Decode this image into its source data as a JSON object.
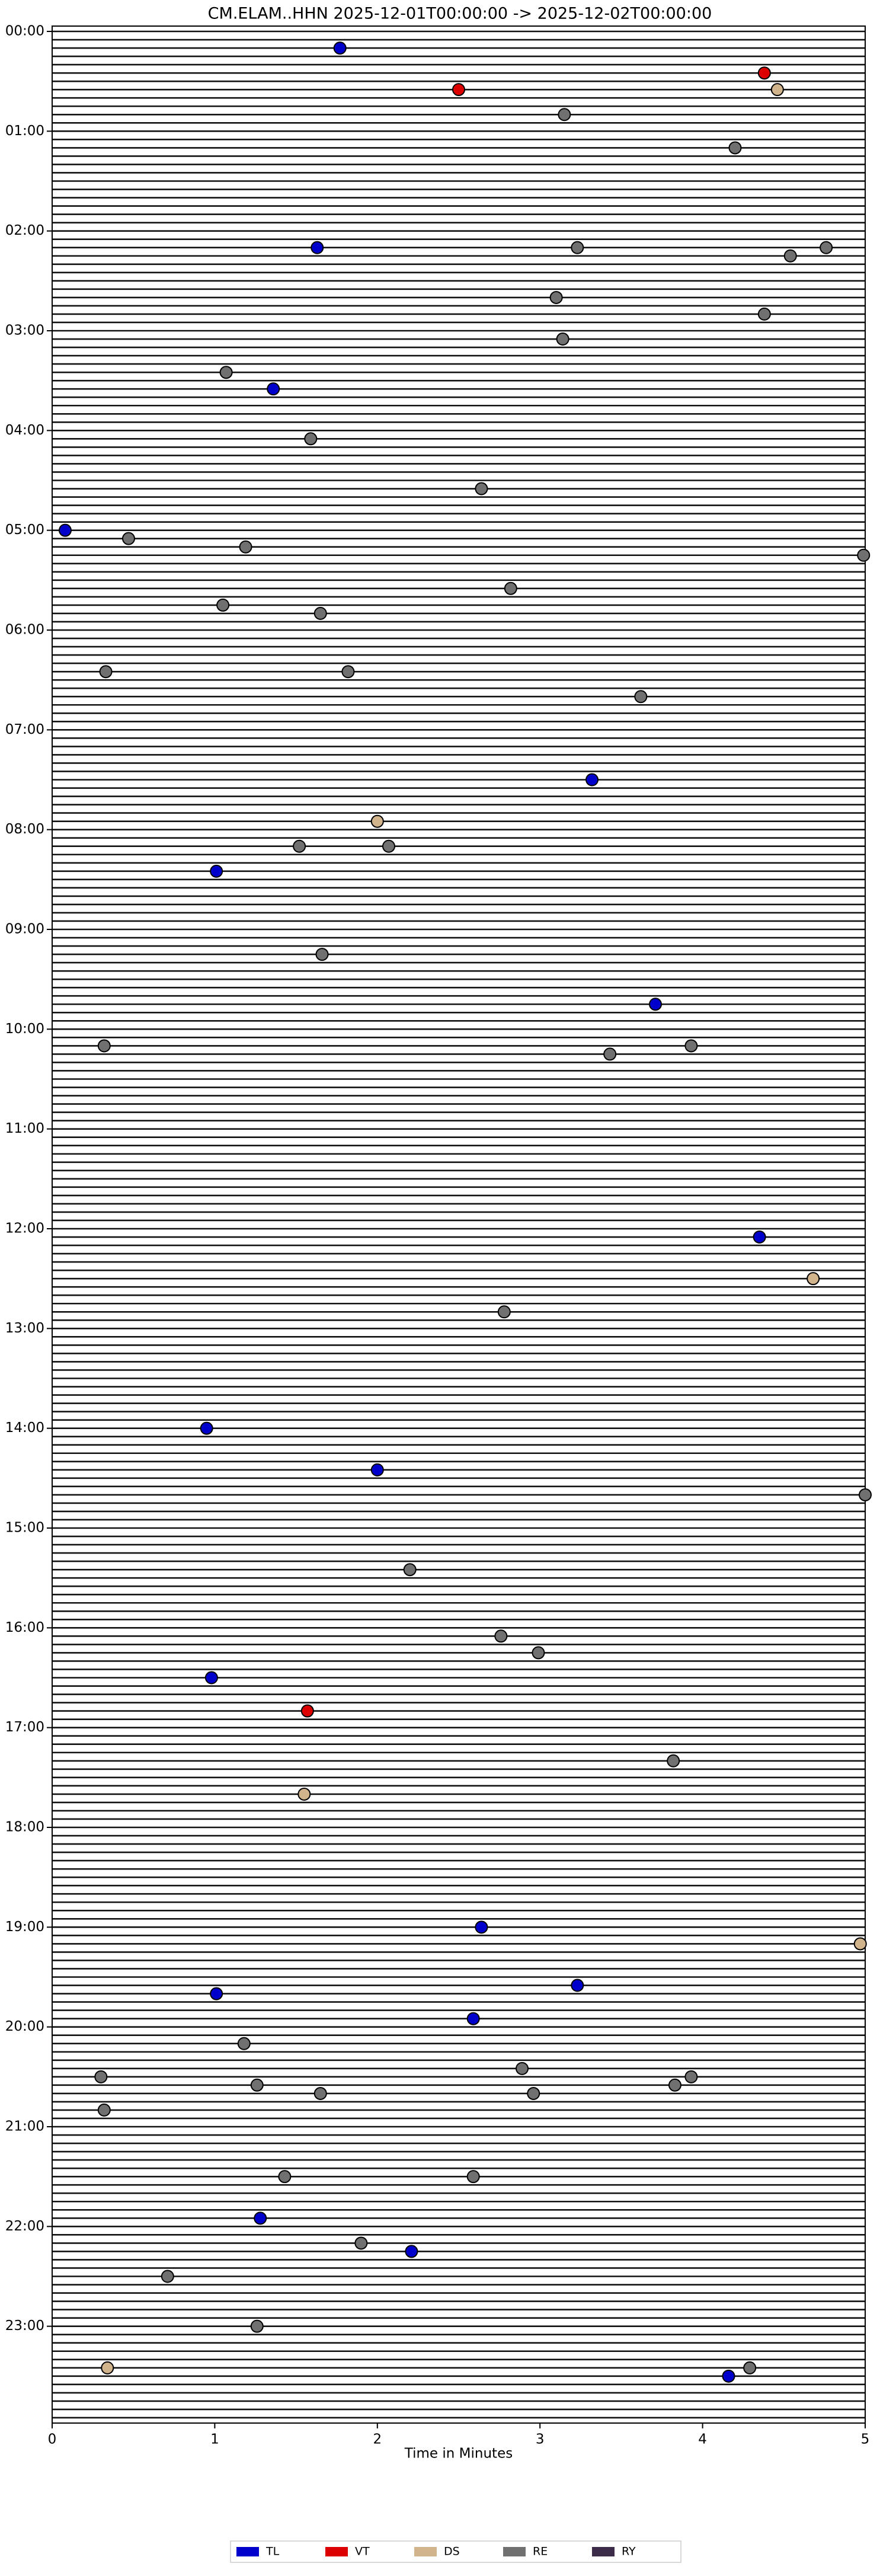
{
  "chart_data": {
    "type": "helicorder",
    "title": "CM.ELAM..HHN  2025-12-01T00:00:00 -> 2025-12-02T00:00:00",
    "x_label": "Time in Minutes",
    "xlim": [
      0,
      5
    ],
    "xticks": [
      0,
      1,
      2,
      3,
      4,
      5
    ],
    "ylim": [
      0,
      24
    ],
    "row_hours": 0.0833,
    "yticks": [
      {
        "value": 0,
        "label": "00:00"
      },
      {
        "value": 1,
        "label": "01:00"
      },
      {
        "value": 2,
        "label": "02:00"
      },
      {
        "value": 3,
        "label": "03:00"
      },
      {
        "value": 4,
        "label": "04:00"
      },
      {
        "value": 5,
        "label": "05:00"
      },
      {
        "value": 6,
        "label": "06:00"
      },
      {
        "value": 7,
        "label": "07:00"
      },
      {
        "value": 8,
        "label": "08:00"
      },
      {
        "value": 9,
        "label": "09:00"
      },
      {
        "value": 10,
        "label": "10:00"
      },
      {
        "value": 11,
        "label": "11:00"
      },
      {
        "value": 12,
        "label": "12:00"
      },
      {
        "value": 13,
        "label": "13:00"
      },
      {
        "value": 14,
        "label": "14:00"
      },
      {
        "value": 15,
        "label": "15:00"
      },
      {
        "value": 16,
        "label": "16:00"
      },
      {
        "value": 17,
        "label": "17:00"
      },
      {
        "value": 18,
        "label": "18:00"
      },
      {
        "value": 19,
        "label": "19:00"
      },
      {
        "value": 20,
        "label": "20:00"
      },
      {
        "value": 21,
        "label": "21:00"
      },
      {
        "value": 22,
        "label": "22:00"
      },
      {
        "value": 23,
        "label": "23:00"
      }
    ],
    "series": [
      {
        "name": "TL",
        "color": "#0000cc",
        "x": [
          1.77,
          1.63,
          1.36,
          0.08,
          3.32,
          1.01,
          3.71,
          4.35,
          0.95,
          2.0,
          0.98,
          2.64,
          3.23,
          1.01,
          2.59,
          1.28,
          2.21,
          4.16
        ],
        "y": [
          0.167,
          2.167,
          3.583,
          5.0,
          7.5,
          8.417,
          9.75,
          12.083,
          14.0,
          14.417,
          16.5,
          19.0,
          19.583,
          19.667,
          19.917,
          21.917,
          22.25,
          23.5
        ]
      },
      {
        "name": "VT",
        "color": "#dd0000",
        "x": [
          4.38,
          2.5,
          1.57
        ],
        "y": [
          0.417,
          0.583,
          16.833
        ]
      },
      {
        "name": "DS",
        "color": "#d2b48c",
        "x": [
          4.46,
          2.0,
          4.68,
          1.55,
          4.97,
          0.34
        ],
        "y": [
          0.583,
          7.917,
          12.5,
          17.667,
          19.167,
          23.417
        ]
      },
      {
        "name": "RE",
        "color": "#707070",
        "x": [
          3.15,
          4.2,
          3.23,
          4.76,
          4.54,
          3.1,
          4.38,
          3.14,
          1.07,
          1.59,
          2.64,
          0.47,
          1.19,
          4.99,
          2.82,
          1.05,
          1.65,
          0.33,
          1.82,
          3.62,
          1.52,
          2.07,
          1.66,
          0.32,
          3.93,
          3.43,
          2.78,
          5.0,
          2.2,
          2.76,
          2.99,
          3.82,
          1.18,
          2.89,
          0.3,
          3.93,
          1.26,
          3.83,
          1.65,
          2.96,
          0.32,
          1.43,
          2.59,
          1.9,
          0.71,
          1.26,
          4.29
        ],
        "y": [
          0.833,
          1.167,
          2.167,
          2.167,
          2.25,
          2.667,
          2.833,
          3.083,
          3.417,
          4.083,
          4.583,
          5.083,
          5.167,
          5.25,
          5.583,
          5.75,
          5.833,
          6.417,
          6.417,
          6.667,
          8.167,
          8.167,
          9.25,
          10.167,
          10.167,
          10.25,
          12.833,
          14.667,
          15.417,
          16.083,
          16.25,
          17.333,
          20.167,
          20.417,
          20.5,
          20.5,
          20.583,
          20.583,
          20.667,
          20.667,
          20.833,
          21.5,
          21.5,
          22.167,
          22.5,
          23.0,
          23.417
        ]
      },
      {
        "name": "RY",
        "color": "#3d2b4a",
        "x": [],
        "y": []
      }
    ]
  }
}
